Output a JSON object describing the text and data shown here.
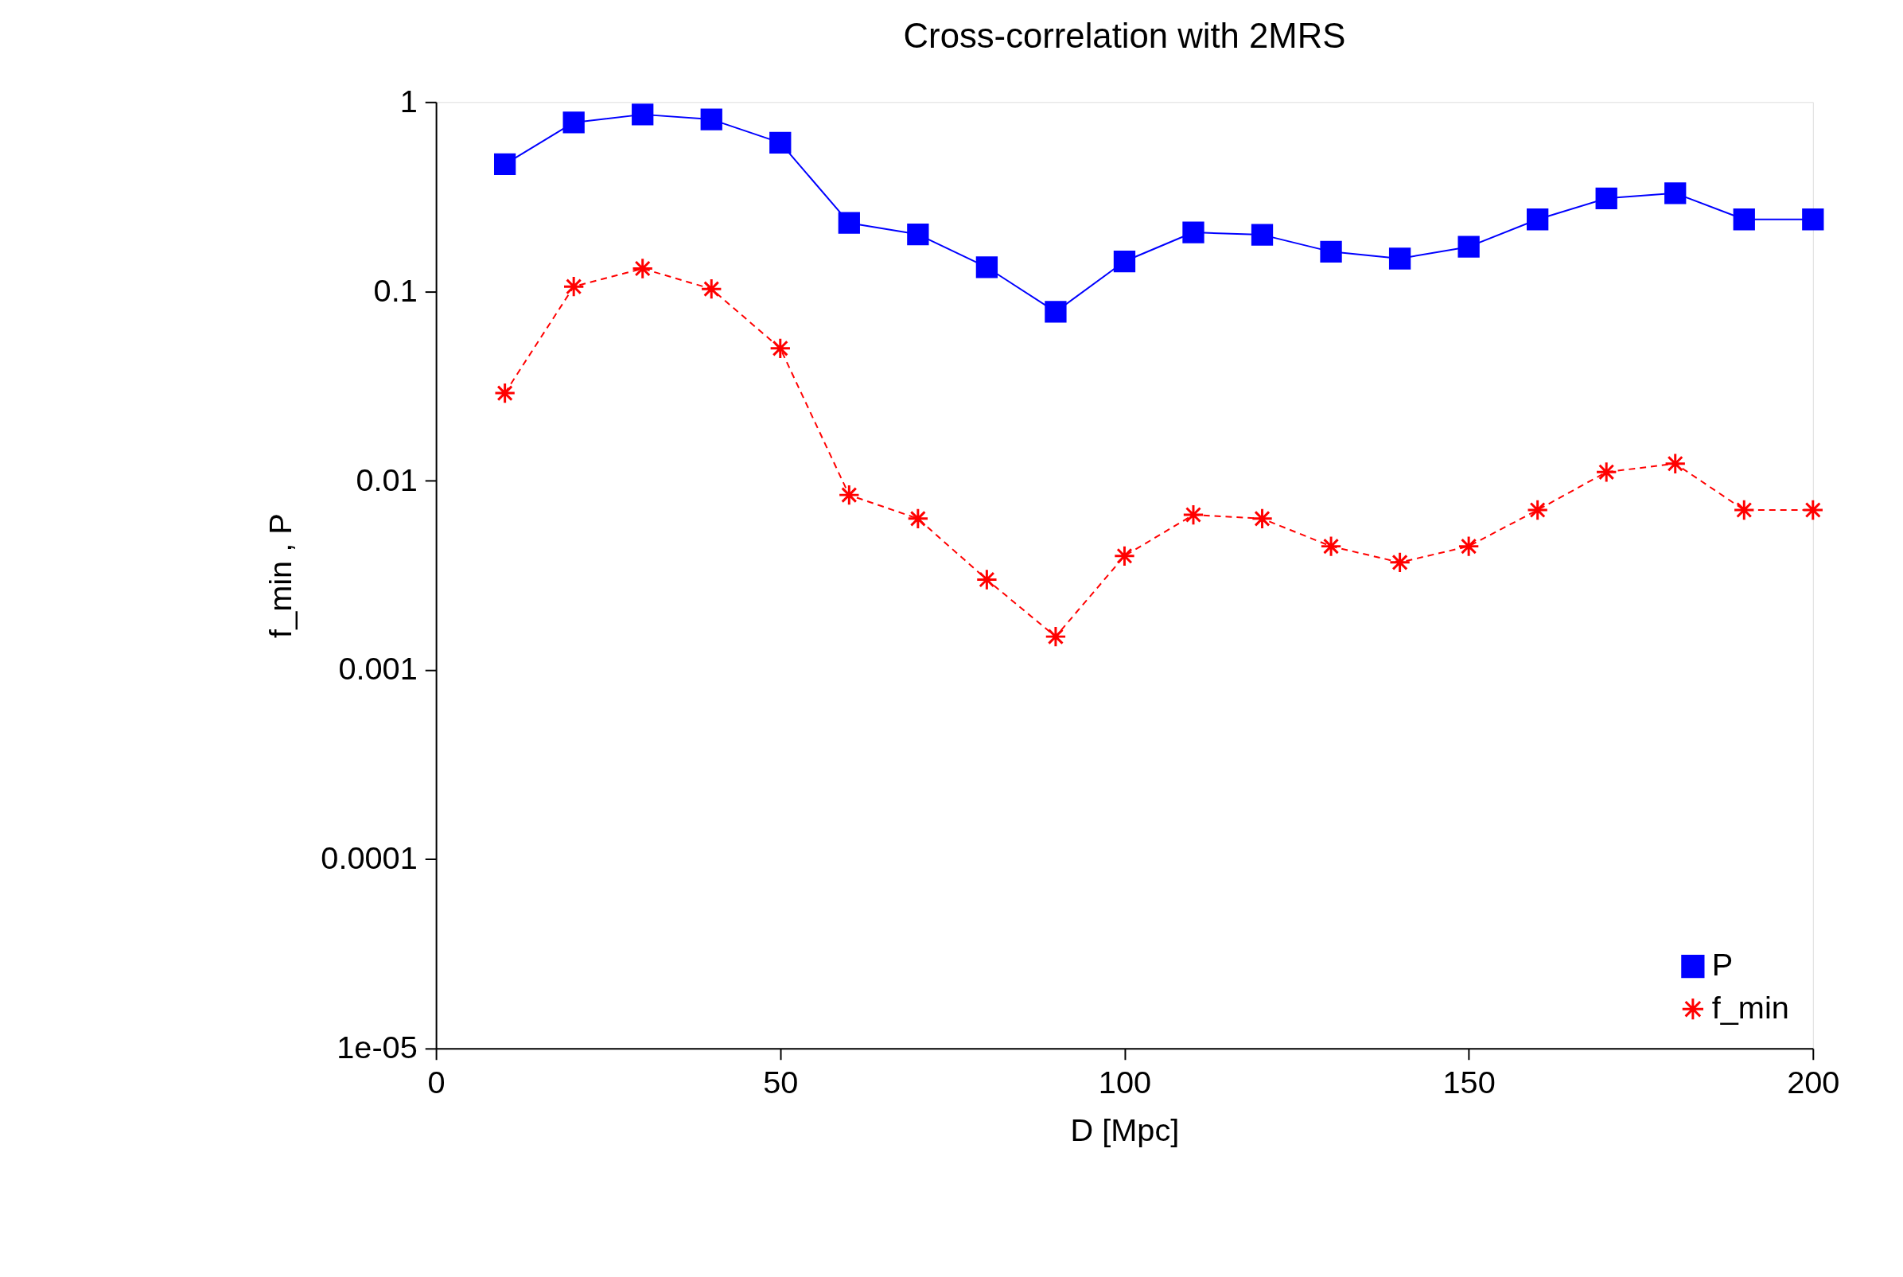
{
  "chart_data": {
    "type": "line",
    "title": "Cross-correlation with 2MRS",
    "xlabel": "D [Mpc]",
    "ylabel": "f_min , P",
    "x": [
      10,
      20,
      30,
      40,
      50,
      60,
      70,
      80,
      90,
      100,
      110,
      120,
      130,
      140,
      150,
      160,
      170,
      180,
      190,
      200
    ],
    "series": [
      {
        "name": "P",
        "color": "#0000ff",
        "marker": "square",
        "line_style": "solid",
        "values": [
          0.47,
          0.78,
          0.86,
          0.81,
          0.61,
          0.23,
          0.2,
          0.134,
          0.078,
          0.144,
          0.205,
          0.199,
          0.162,
          0.149,
          0.172,
          0.24,
          0.31,
          0.33,
          0.24,
          0.24
        ]
      },
      {
        "name": "f_min",
        "color": "#ff0000",
        "marker": "cross",
        "line_style": "dashed",
        "values": [
          0.029,
          0.106,
          0.132,
          0.103,
          0.05,
          0.0084,
          0.0063,
          0.003,
          0.0015,
          0.004,
          0.0066,
          0.0063,
          0.0045,
          0.0037,
          0.0045,
          0.007,
          0.0111,
          0.0123,
          0.007,
          0.007
        ]
      }
    ],
    "log": true,
    "xlim": [
      0,
      200
    ],
    "xticks": [
      0,
      50,
      100,
      150,
      200
    ],
    "ylim": [
      1e-05,
      1
    ],
    "yticks": [
      1,
      0.1,
      0.01,
      0.001,
      0.0001,
      {
        "value": 1e-05,
        "label": "1e-05"
      }
    ],
    "grid": false,
    "legend": "bottom right"
  }
}
